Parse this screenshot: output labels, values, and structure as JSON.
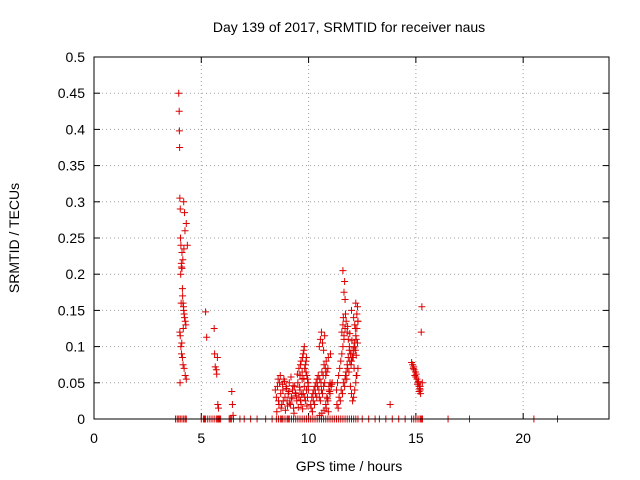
{
  "chart_data": {
    "type": "scatter",
    "title": "Day 139 of 2017, SRMTID for receiver naus",
    "xlabel": "GPS time / hours",
    "ylabel": "SRMTID / TECUs",
    "xlim": [
      0,
      24
    ],
    "ylim": [
      0,
      0.5
    ],
    "xticks": [
      0,
      5,
      10,
      15,
      20
    ],
    "yticks": [
      0,
      0.05,
      0.1,
      0.15,
      0.2,
      0.25,
      0.3,
      0.35,
      0.4,
      0.45,
      0.5
    ],
    "grid": true,
    "marker": "+",
    "marker_color": "#dd0000",
    "series": [
      {
        "x": [
          3.8,
          3.88,
          3.95,
          4.02,
          4.1,
          4.18,
          4.25,
          4.3,
          3.95,
          3.97,
          3.98,
          3.99,
          4.0,
          4.02,
          4.03,
          4.05,
          4.07,
          4.08,
          4.1,
          4.12,
          4.13,
          4.15,
          4.17,
          4.18,
          4.2,
          4.22,
          4.25,
          4.28,
          4.3,
          4.35,
          4.0,
          4.02,
          4.05,
          4.08,
          4.12,
          4.15,
          4.2,
          4.25,
          4.3,
          4.18,
          4.22,
          4.1,
          4.04,
          4.14,
          4.06,
          4.16,
          4.24,
          4.09,
          4.19,
          4.01,
          5.0,
          5.1,
          5.15,
          5.2,
          5.3,
          5.4,
          5.5,
          5.6,
          5.7,
          5.75,
          5.8,
          5.85,
          5.9,
          6.3,
          6.35,
          6.4,
          6.5,
          6.8,
          7.0,
          7.3,
          7.6,
          8.0,
          8.3,
          5.2,
          5.25,
          5.6,
          5.62,
          5.65,
          5.7,
          5.72,
          5.75,
          5.77,
          5.8,
          6.42,
          6.45,
          6.48,
          8.5,
          8.6,
          8.7,
          8.75,
          8.8,
          8.9,
          9.0,
          9.05,
          9.1,
          9.2,
          9.3,
          9.4,
          9.5,
          9.6,
          9.7,
          9.8,
          9.9,
          10.0,
          10.1,
          10.2,
          10.3,
          10.4,
          10.5,
          10.6,
          10.7,
          10.8,
          10.9,
          11.0,
          11.1,
          11.2,
          11.3,
          11.4,
          11.5,
          11.6,
          11.7,
          11.8,
          11.9,
          12.0,
          12.1,
          12.2,
          12.3,
          12.5,
          12.8,
          13.1,
          13.3,
          13.6,
          13.9,
          14.2,
          14.5,
          14.8,
          14.9,
          15.0,
          15.1,
          15.2,
          15.3,
          8.45,
          8.5,
          8.55,
          8.6,
          8.65,
          8.7,
          8.75,
          8.8,
          8.85,
          8.9,
          8.95,
          9.0,
          9.05,
          9.1,
          9.15,
          9.2,
          9.25,
          9.3,
          9.35,
          9.4,
          9.45,
          9.5,
          9.55,
          9.6,
          9.65,
          9.7,
          9.75,
          9.8,
          9.85,
          9.9,
          9.95,
          8.52,
          8.62,
          8.72,
          8.82,
          8.92,
          9.02,
          9.12,
          9.22,
          9.32,
          9.42,
          9.52,
          9.62,
          9.72,
          9.82,
          9.92,
          8.58,
          8.68,
          8.78,
          8.88,
          8.98,
          9.08,
          9.18,
          9.28,
          9.38,
          9.48,
          9.58,
          9.68,
          9.78,
          9.88,
          9.98,
          9.55,
          9.6,
          9.62,
          9.65,
          9.7,
          9.72,
          9.75,
          9.78,
          9.8,
          9.82,
          9.85,
          9.88,
          9.9,
          9.92,
          9.95,
          9.97,
          9.98,
          9.99,
          10.1,
          10.15,
          10.2,
          10.25,
          10.3,
          10.35,
          10.4,
          10.45,
          10.5,
          10.55,
          10.6,
          10.65,
          10.7,
          10.75,
          10.8,
          10.85,
          10.9,
          10.95,
          11.0,
          11.05,
          11.1,
          10.12,
          10.22,
          10.32,
          10.42,
          10.52,
          10.62,
          10.72,
          10.82,
          10.92,
          11.02,
          10.18,
          10.28,
          10.38,
          10.48,
          10.58,
          10.68,
          10.78,
          10.88,
          10.98,
          11.08,
          10.5,
          10.55,
          10.6,
          10.65,
          10.7,
          10.75,
          10.8,
          10.85,
          10.9,
          10.95,
          11.0,
          10.52,
          10.62,
          10.72,
          10.82,
          10.92,
          11.3,
          11.35,
          11.4,
          11.45,
          11.5,
          11.55,
          11.6,
          11.65,
          11.7,
          11.75,
          11.8,
          11.85,
          11.9,
          11.95,
          12.0,
          12.05,
          12.1,
          12.15,
          12.2,
          12.25,
          12.3,
          11.32,
          11.42,
          11.52,
          11.62,
          11.72,
          11.82,
          11.92,
          12.02,
          12.12,
          12.22,
          11.38,
          11.48,
          11.58,
          11.68,
          11.78,
          11.88,
          11.98,
          12.08,
          12.18,
          12.28,
          11.55,
          11.6,
          11.65,
          11.7,
          11.75,
          11.8,
          11.85,
          11.9,
          11.95,
          12.0,
          12.05,
          12.1,
          12.15,
          12.2,
          12.25,
          12.3,
          11.62,
          11.72,
          11.82,
          11.92,
          12.02,
          12.12,
          12.22,
          11.6,
          11.65,
          11.7,
          12.0,
          12.1,
          12.15,
          12.2,
          12.25,
          12.3,
          12.28,
          12.18,
          11.68,
          12.22,
          12.12,
          13.8,
          14.8,
          14.85,
          14.9,
          14.95,
          15.0,
          15.05,
          15.1,
          15.15,
          15.2,
          14.88,
          14.98,
          15.08,
          15.18,
          15.22,
          15.12,
          15.02,
          14.92,
          15.25,
          15.28,
          15.3,
          15.2,
          15.15,
          15.3,
          15.25,
          15.2,
          16.5,
          17.5,
          20.5,
          21.6
        ],
        "y": [
          0,
          0,
          0,
          0,
          0,
          0,
          0,
          0,
          0.45,
          0.425,
          0.398,
          0.375,
          0.305,
          0.29,
          0.25,
          0.24,
          0.215,
          0.21,
          0.208,
          0.18,
          0.17,
          0.16,
          0.155,
          0.15,
          0.145,
          0.14,
          0.135,
          0.13,
          0.27,
          0.24,
          0.12,
          0.115,
          0.1,
          0.09,
          0.085,
          0.075,
          0.07,
          0.06,
          0.055,
          0.3,
          0.285,
          0.23,
          0.2,
          0.22,
          0.16,
          0.125,
          0.26,
          0.105,
          0.235,
          0.05,
          0,
          0,
          0,
          0,
          0,
          0,
          0,
          0,
          0,
          0,
          0,
          0,
          0,
          0,
          0,
          0,
          0,
          0,
          0,
          0,
          0,
          0,
          0,
          0.148,
          0.113,
          0.125,
          0.09,
          0.072,
          0.068,
          0.062,
          0.085,
          0.02,
          0.015,
          0.038,
          0.02,
          0.005,
          0,
          0,
          0,
          0,
          0,
          0,
          0,
          0,
          0,
          0,
          0,
          0,
          0,
          0,
          0,
          0,
          0,
          0,
          0,
          0,
          0,
          0,
          0,
          0,
          0,
          0,
          0,
          0,
          0,
          0,
          0,
          0,
          0,
          0,
          0,
          0,
          0,
          0,
          0,
          0,
          0,
          0,
          0,
          0,
          0,
          0,
          0,
          0,
          0,
          0,
          0,
          0,
          0,
          0,
          0,
          0.04,
          0.03,
          0.045,
          0.025,
          0.05,
          0.035,
          0.02,
          0.04,
          0.055,
          0.03,
          0.045,
          0.025,
          0.035,
          0.05,
          0.02,
          0.03,
          0.04,
          0.015,
          0.045,
          0.035,
          0.025,
          0.05,
          0.03,
          0.04,
          0.02,
          0.055,
          0.035,
          0.045,
          0.025,
          0.04,
          0.03,
          0.01,
          0.02,
          0.015,
          0.025,
          0.012,
          0.018,
          0.022,
          0.028,
          0.008,
          0.032,
          0.016,
          0.026,
          0.014,
          0.03,
          0.018,
          0.055,
          0.06,
          0.048,
          0.052,
          0.042,
          0.038,
          0.058,
          0.046,
          0.036,
          0.062,
          0.044,
          0.034,
          0.056,
          0.065,
          0.05,
          0.07,
          0.06,
          0.075,
          0.08,
          0.065,
          0.085,
          0.09,
          0.095,
          0.1,
          0.07,
          0.075,
          0.08,
          0.085,
          0.06,
          0.055,
          0.05,
          0.045,
          0.04,
          0.02,
          0.03,
          0.035,
          0.04,
          0.045,
          0.05,
          0.055,
          0.06,
          0.03,
          0.025,
          0.04,
          0.035,
          0.045,
          0.05,
          0.02,
          0.03,
          0.025,
          0.04,
          0.035,
          0.045,
          0.05,
          0.015,
          0.025,
          0.035,
          0.045,
          0.055,
          0.065,
          0.075,
          0.08,
          0.085,
          0.09,
          0.01,
          0.02,
          0.03,
          0.04,
          0.05,
          0.06,
          0.07,
          0.028,
          0.038,
          0.048,
          0.1,
          0.11,
          0.12,
          0.105,
          0.095,
          0.115,
          0.06,
          0.065,
          0.07,
          0.045,
          0.05,
          0.005,
          0.008,
          0.012,
          0.015,
          0.01,
          0.04,
          0.05,
          0.06,
          0.07,
          0.08,
          0.09,
          0.1,
          0.11,
          0.055,
          0.065,
          0.075,
          0.085,
          0.095,
          0.045,
          0.035,
          0.025,
          0.03,
          0.04,
          0.05,
          0.06,
          0.07,
          0.02,
          0.03,
          0.04,
          0.05,
          0.06,
          0.07,
          0.08,
          0.09,
          0.1,
          0.11,
          0.015,
          0.025,
          0.035,
          0.045,
          0.055,
          0.065,
          0.075,
          0.085,
          0.095,
          0.105,
          0.12,
          0.13,
          0.115,
          0.125,
          0.135,
          0.12,
          0.11,
          0.1,
          0.09,
          0.08,
          0.085,
          0.095,
          0.105,
          0.115,
          0.125,
          0.135,
          0.14,
          0.145,
          0.128,
          0.118,
          0.108,
          0.098,
          0.088,
          0.205,
          0.175,
          0.165,
          0.15,
          0.14,
          0.13,
          0.16,
          0.145,
          0.135,
          0.155,
          0.125,
          0.19,
          0.06,
          0.07,
          0.02,
          0.078,
          0.075,
          0.072,
          0.06,
          0.058,
          0.055,
          0.05,
          0.045,
          0.04,
          0.07,
          0.065,
          0.048,
          0.042,
          0.035,
          0.052,
          0.062,
          0.068,
          0.12,
          0.155,
          0.05,
          0.045,
          0.038,
          0,
          0,
          0,
          0,
          0,
          0,
          0
        ]
      }
    ]
  }
}
